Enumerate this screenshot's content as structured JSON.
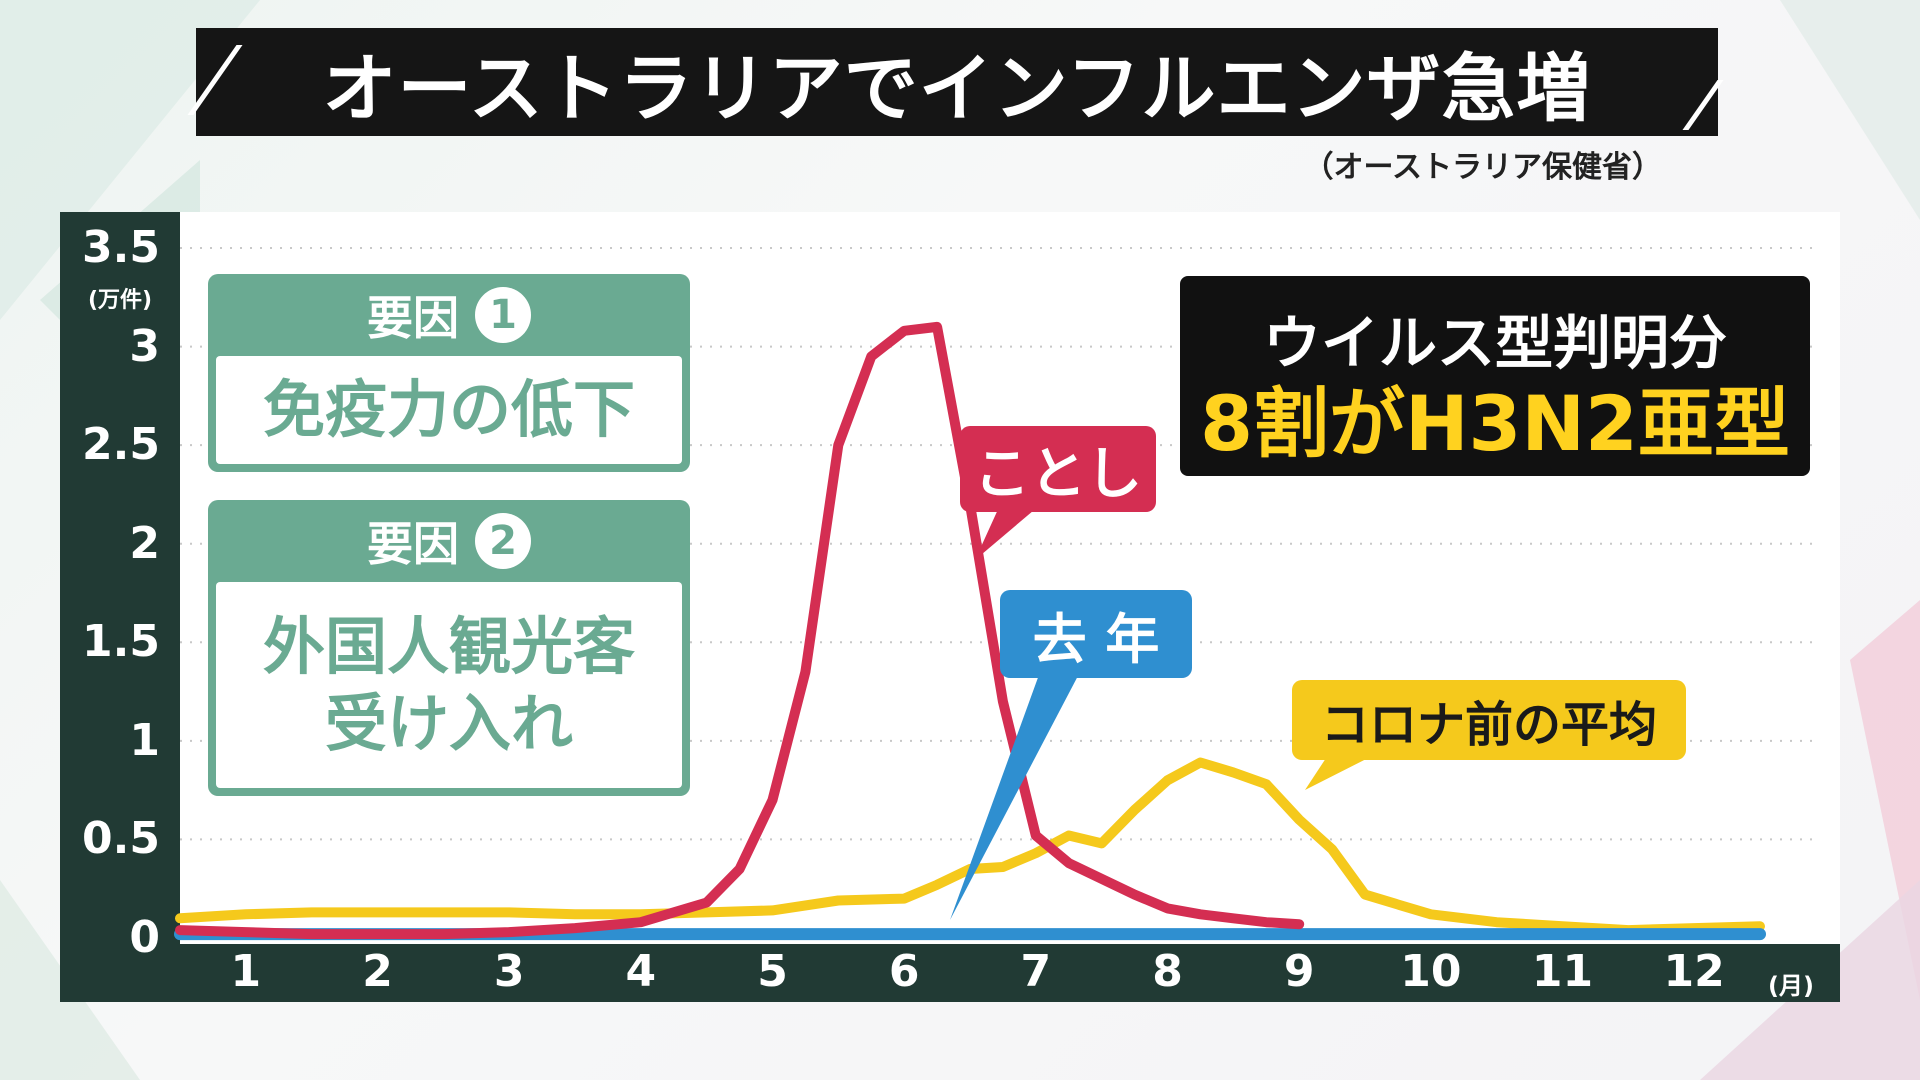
{
  "title": "オーストラリアでインフルエンザ急増",
  "source": "（オーストラリア保健省）",
  "factors": [
    {
      "head": "要因",
      "num": "1",
      "body": "免疫力の低下"
    },
    {
      "head": "要因",
      "num": "2",
      "body": "外国人観光客\n受け入れ"
    }
  ],
  "virus": {
    "line1": "ウイルス型判明分",
    "line2": "8割がH3N2亜型"
  },
  "callouts": {
    "this_year": "ことし",
    "last_year": "去 年",
    "pre_covid": "コロナ前の平均"
  },
  "colors": {
    "this_year": "#d42e52",
    "last_year": "#2f8fd0",
    "pre_covid": "#f5c91c",
    "frame": "#213a34",
    "factor": "#6aaa92"
  },
  "chart_data": {
    "type": "line",
    "xlabel": "(月)",
    "ylabel": "(万件)",
    "ylim": [
      0,
      3.5
    ],
    "xlim": [
      0.5,
      12.5
    ],
    "grid": true,
    "yticks": [
      "0",
      "0.5",
      "1",
      "1.5",
      "2",
      "2.5",
      "3",
      "3.5"
    ],
    "xticks": [
      "1",
      "2",
      "3",
      "4",
      "5",
      "6",
      "7",
      "8",
      "9",
      "10",
      "11",
      "12"
    ],
    "series": [
      {
        "name": "コロナ前の平均",
        "color": "#f5c91c",
        "x": [
          0.5,
          1.0,
          1.5,
          2.0,
          2.5,
          3.0,
          3.5,
          4.0,
          4.5,
          5.0,
          5.5,
          6.0,
          6.25,
          6.5,
          6.75,
          7.0,
          7.25,
          7.5,
          7.75,
          8.0,
          8.25,
          8.5,
          8.75,
          9.0,
          9.25,
          9.5,
          9.75,
          10.0,
          10.5,
          11.0,
          11.5,
          12.0,
          12.5
        ],
        "y": [
          0.1,
          0.12,
          0.13,
          0.13,
          0.13,
          0.13,
          0.12,
          0.12,
          0.13,
          0.14,
          0.19,
          0.2,
          0.27,
          0.35,
          0.36,
          0.43,
          0.52,
          0.48,
          0.65,
          0.8,
          0.89,
          0.84,
          0.78,
          0.6,
          0.45,
          0.22,
          0.17,
          0.12,
          0.08,
          0.06,
          0.04,
          0.05,
          0.06
        ]
      },
      {
        "name": "去 年",
        "color": "#2f8fd0",
        "x": [
          0.5,
          12.5
        ],
        "y": [
          0.02,
          0.02
        ]
      },
      {
        "name": "ことし",
        "color": "#d42e52",
        "x": [
          0.5,
          1.0,
          1.5,
          2.0,
          2.5,
          3.0,
          3.5,
          4.0,
          4.5,
          4.75,
          5.0,
          5.25,
          5.5,
          5.75,
          6.0,
          6.25,
          6.5,
          6.75,
          7.0,
          7.25,
          7.5,
          7.75,
          8.0,
          8.25,
          8.5,
          8.75,
          9.0
        ],
        "y": [
          0.04,
          0.03,
          0.02,
          0.02,
          0.02,
          0.03,
          0.05,
          0.08,
          0.18,
          0.35,
          0.7,
          1.35,
          2.5,
          2.95,
          3.08,
          3.1,
          2.2,
          1.2,
          0.52,
          0.38,
          0.3,
          0.22,
          0.15,
          0.12,
          0.1,
          0.08,
          0.07
        ]
      }
    ]
  }
}
